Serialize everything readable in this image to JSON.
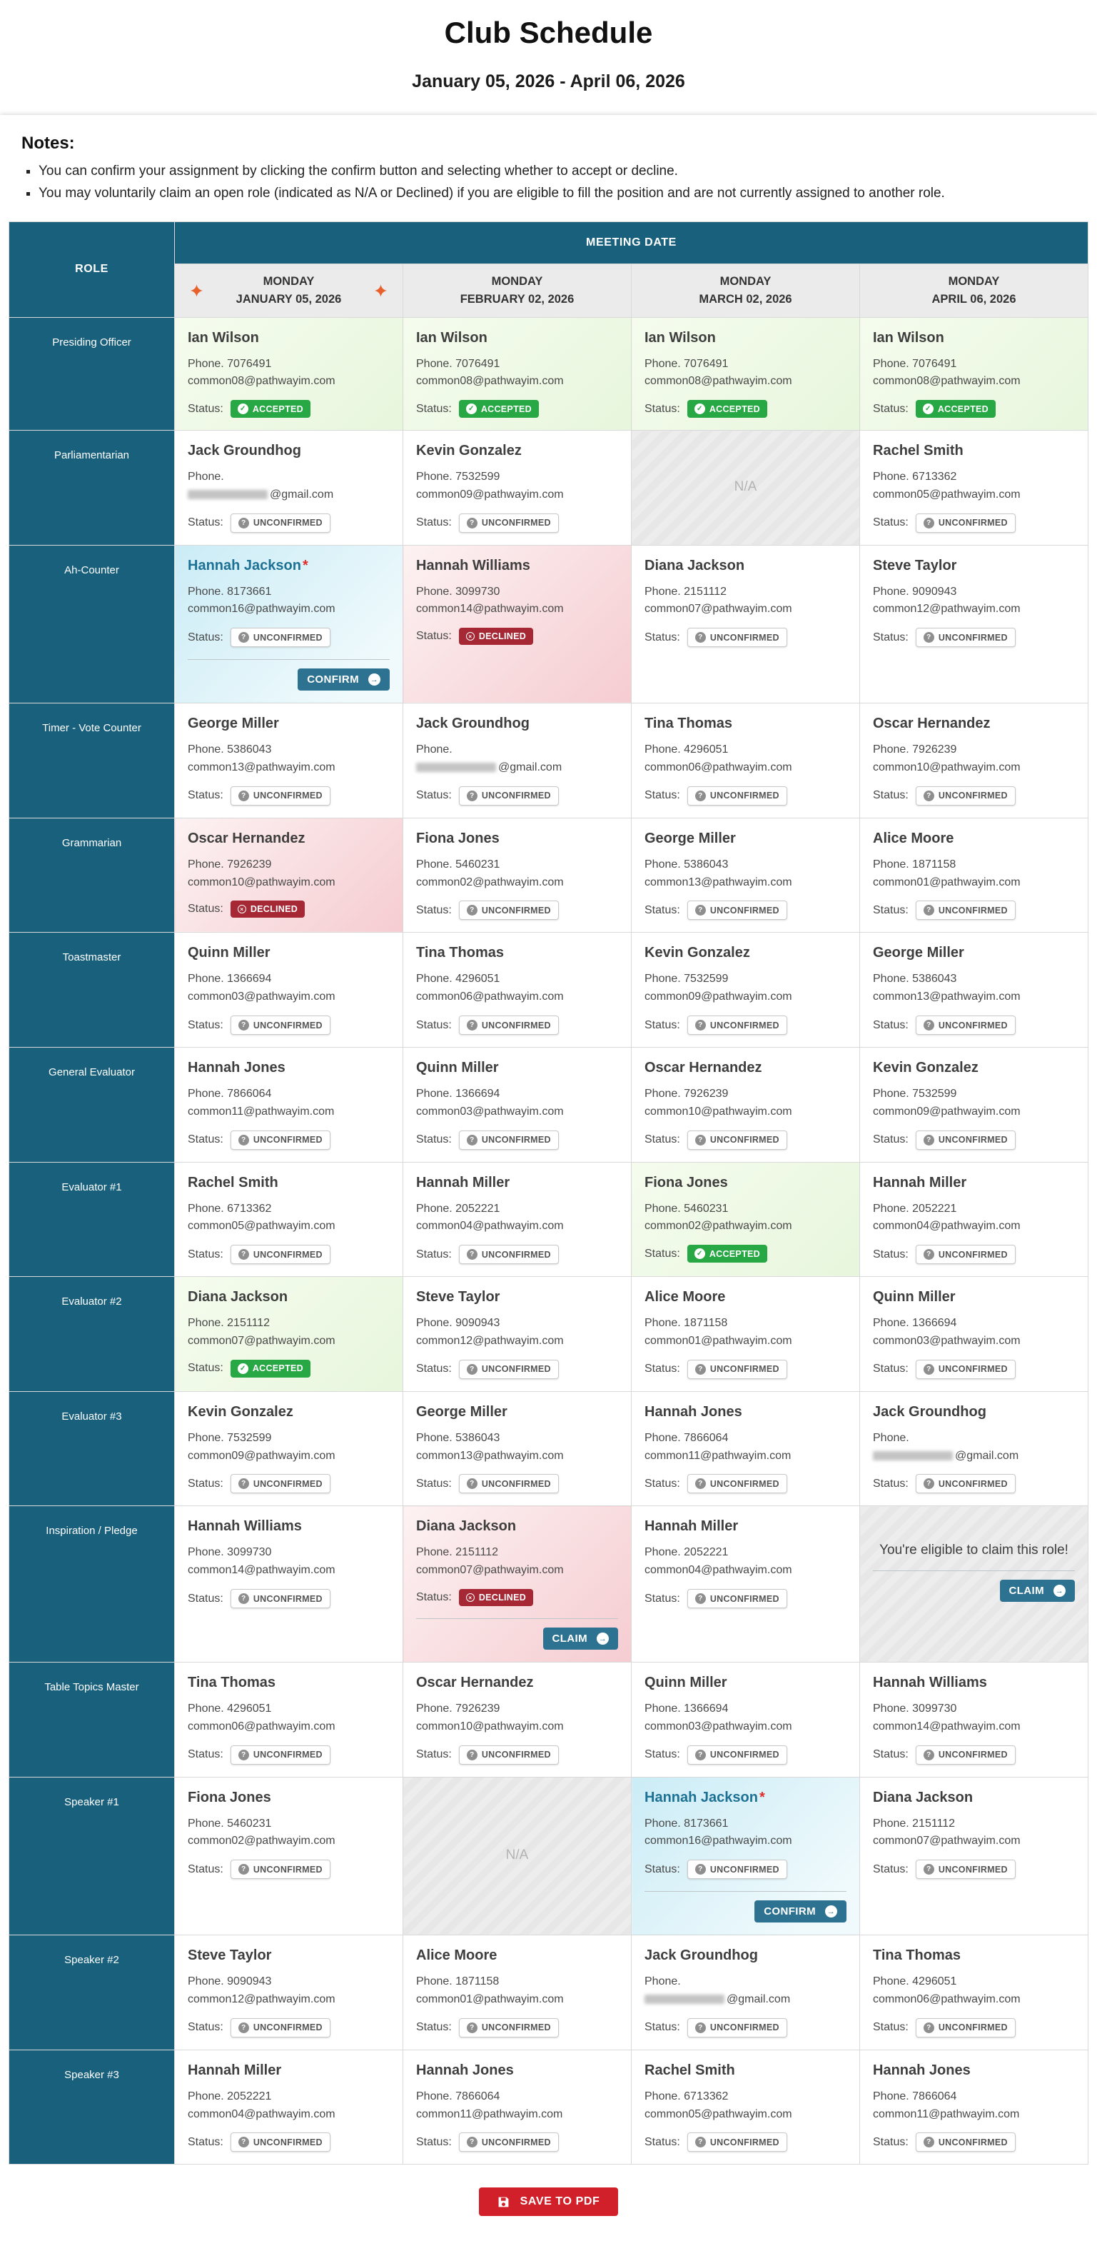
{
  "page": {
    "title": "Club Schedule",
    "date_range": "January 05, 2026 - April 06, 2026",
    "notes_heading": "Notes:",
    "notes": [
      "You can confirm your assignment by clicking the confirm button and selecting whether to accept or decline.",
      "You may voluntarily claim an open role (indicated as N/A or Declined) if you are eligible to fill the position and are not currently assigned to another role."
    ],
    "save_button_label": "SAVE TO PDF"
  },
  "colors": {
    "header_teal": "#19607d",
    "accepted_green": "#28a745",
    "declined_red": "#a52834",
    "action_teal": "#2e7292",
    "save_red": "#d1202a",
    "highlight_orange": "#e8612c",
    "accepted_cell": "#e8f6dd",
    "declined_cell": "#f5ccd1",
    "confirm_cell": "#cbecf6"
  },
  "table": {
    "role_header": "ROLE",
    "meeting_date_header": "MEETING DATE",
    "columns": [
      {
        "day": "MONDAY",
        "date": "JANUARY 05, 2026",
        "highlight": true
      },
      {
        "day": "MONDAY",
        "date": "FEBRUARY 02, 2026",
        "highlight": false
      },
      {
        "day": "MONDAY",
        "date": "MARCH 02, 2026",
        "highlight": false
      },
      {
        "day": "MONDAY",
        "date": "APRIL 06, 2026",
        "highlight": false
      }
    ],
    "labels": {
      "status": "Status:",
      "phone_prefix": "Phone.",
      "na": "N/A",
      "confirm": "CONFIRM",
      "claim": "CLAIM",
      "eligible": "You're eligible to claim this role!"
    },
    "status_labels": {
      "accepted": "ACCEPTED",
      "declined": "DECLINED",
      "unconfirmed": "UNCONFIRMED"
    },
    "rows": [
      {
        "role": "Presiding Officer",
        "cells": [
          {
            "name": "Ian Wilson",
            "phone": "7076491",
            "email": "common08@pathwayim.com",
            "status": "accepted",
            "bg": "green"
          },
          {
            "name": "Ian Wilson",
            "phone": "7076491",
            "email": "common08@pathwayim.com",
            "status": "accepted",
            "bg": "green"
          },
          {
            "name": "Ian Wilson",
            "phone": "7076491",
            "email": "common08@pathwayim.com",
            "status": "accepted",
            "bg": "green"
          },
          {
            "name": "Ian Wilson",
            "phone": "7076491",
            "email": "common08@pathwayim.com",
            "status": "accepted",
            "bg": "green"
          }
        ]
      },
      {
        "role": "Parliamentarian",
        "cells": [
          {
            "name": "Jack Groundhog",
            "phone": "",
            "email_redacted": true,
            "email_suffix": "@gmail.com",
            "status": "unconfirmed"
          },
          {
            "name": "Kevin Gonzalez",
            "phone": "7532599",
            "email": "common09@pathwayim.com",
            "status": "unconfirmed"
          },
          {
            "na": true
          },
          {
            "name": "Rachel Smith",
            "phone": "6713362",
            "email": "common05@pathwayim.com",
            "status": "unconfirmed"
          }
        ]
      },
      {
        "role": "Ah-Counter",
        "cells": [
          {
            "name": "Hannah Jackson",
            "asterisk": true,
            "phone": "8173661",
            "email": "common16@pathwayim.com",
            "status": "unconfirmed",
            "bg": "cyan",
            "action": "confirm"
          },
          {
            "name": "Hannah Williams",
            "phone": "3099730",
            "email": "common14@pathwayim.com",
            "status": "declined",
            "bg": "pink"
          },
          {
            "name": "Diana Jackson",
            "phone": "2151112",
            "email": "common07@pathwayim.com",
            "status": "unconfirmed"
          },
          {
            "name": "Steve Taylor",
            "phone": "9090943",
            "email": "common12@pathwayim.com",
            "status": "unconfirmed"
          }
        ]
      },
      {
        "role": "Timer - Vote Counter",
        "cells": [
          {
            "name": "George Miller",
            "phone": "5386043",
            "email": "common13@pathwayim.com",
            "status": "unconfirmed"
          },
          {
            "name": "Jack Groundhog",
            "phone": "",
            "email_redacted": true,
            "email_suffix": "@gmail.com",
            "status": "unconfirmed"
          },
          {
            "name": "Tina Thomas",
            "phone": "4296051",
            "email": "common06@pathwayim.com",
            "status": "unconfirmed"
          },
          {
            "name": "Oscar Hernandez",
            "phone": "7926239",
            "email": "common10@pathwayim.com",
            "status": "unconfirmed"
          }
        ]
      },
      {
        "role": "Grammarian",
        "cells": [
          {
            "name": "Oscar Hernandez",
            "phone": "7926239",
            "email": "common10@pathwayim.com",
            "status": "declined",
            "bg": "pink"
          },
          {
            "name": "Fiona Jones",
            "phone": "5460231",
            "email": "common02@pathwayim.com",
            "status": "unconfirmed"
          },
          {
            "name": "George Miller",
            "phone": "5386043",
            "email": "common13@pathwayim.com",
            "status": "unconfirmed"
          },
          {
            "name": "Alice Moore",
            "phone": "1871158",
            "email": "common01@pathwayim.com",
            "status": "unconfirmed"
          }
        ]
      },
      {
        "role": "Toastmaster",
        "cells": [
          {
            "name": "Quinn Miller",
            "phone": "1366694",
            "email": "common03@pathwayim.com",
            "status": "unconfirmed"
          },
          {
            "name": "Tina Thomas",
            "phone": "4296051",
            "email": "common06@pathwayim.com",
            "status": "unconfirmed"
          },
          {
            "name": "Kevin Gonzalez",
            "phone": "7532599",
            "email": "common09@pathwayim.com",
            "status": "unconfirmed"
          },
          {
            "name": "George Miller",
            "phone": "5386043",
            "email": "common13@pathwayim.com",
            "status": "unconfirmed"
          }
        ]
      },
      {
        "role": "General Evaluator",
        "cells": [
          {
            "name": "Hannah Jones",
            "phone": "7866064",
            "email": "common11@pathwayim.com",
            "status": "unconfirmed"
          },
          {
            "name": "Quinn Miller",
            "phone": "1366694",
            "email": "common03@pathwayim.com",
            "status": "unconfirmed"
          },
          {
            "name": "Oscar Hernandez",
            "phone": "7926239",
            "email": "common10@pathwayim.com",
            "status": "unconfirmed"
          },
          {
            "name": "Kevin Gonzalez",
            "phone": "7532599",
            "email": "common09@pathwayim.com",
            "status": "unconfirmed"
          }
        ]
      },
      {
        "role": "Evaluator #1",
        "cells": [
          {
            "name": "Rachel Smith",
            "phone": "6713362",
            "email": "common05@pathwayim.com",
            "status": "unconfirmed"
          },
          {
            "name": "Hannah Miller",
            "phone": "2052221",
            "email": "common04@pathwayim.com",
            "status": "unconfirmed"
          },
          {
            "name": "Fiona Jones",
            "phone": "5460231",
            "email": "common02@pathwayim.com",
            "status": "accepted",
            "bg": "green"
          },
          {
            "name": "Hannah Miller",
            "phone": "2052221",
            "email": "common04@pathwayim.com",
            "status": "unconfirmed"
          }
        ]
      },
      {
        "role": "Evaluator #2",
        "cells": [
          {
            "name": "Diana Jackson",
            "phone": "2151112",
            "email": "common07@pathwayim.com",
            "status": "accepted",
            "bg": "green"
          },
          {
            "name": "Steve Taylor",
            "phone": "9090943",
            "email": "common12@pathwayim.com",
            "status": "unconfirmed"
          },
          {
            "name": "Alice Moore",
            "phone": "1871158",
            "email": "common01@pathwayim.com",
            "status": "unconfirmed"
          },
          {
            "name": "Quinn Miller",
            "phone": "1366694",
            "email": "common03@pathwayim.com",
            "status": "unconfirmed"
          }
        ]
      },
      {
        "role": "Evaluator #3",
        "cells": [
          {
            "name": "Kevin Gonzalez",
            "phone": "7532599",
            "email": "common09@pathwayim.com",
            "status": "unconfirmed"
          },
          {
            "name": "George Miller",
            "phone": "5386043",
            "email": "common13@pathwayim.com",
            "status": "unconfirmed"
          },
          {
            "name": "Hannah Jones",
            "phone": "7866064",
            "email": "common11@pathwayim.com",
            "status": "unconfirmed"
          },
          {
            "name": "Jack Groundhog",
            "phone": "",
            "email_redacted": true,
            "email_suffix": "@gmail.com",
            "status": "unconfirmed"
          }
        ]
      },
      {
        "role": "Inspiration / Pledge",
        "cells": [
          {
            "name": "Hannah Williams",
            "phone": "3099730",
            "email": "common14@pathwayim.com",
            "status": "unconfirmed"
          },
          {
            "name": "Diana Jackson",
            "phone": "2151112",
            "email": "common07@pathwayim.com",
            "status": "declined",
            "bg": "pink",
            "action": "claim"
          },
          {
            "name": "Hannah Miller",
            "phone": "2052221",
            "email": "common04@pathwayim.com",
            "status": "unconfirmed"
          },
          {
            "claimable": true,
            "action": "claim"
          }
        ]
      },
      {
        "role": "Table Topics Master",
        "cells": [
          {
            "name": "Tina Thomas",
            "phone": "4296051",
            "email": "common06@pathwayim.com",
            "status": "unconfirmed"
          },
          {
            "name": "Oscar Hernandez",
            "phone": "7926239",
            "email": "common10@pathwayim.com",
            "status": "unconfirmed"
          },
          {
            "name": "Quinn Miller",
            "phone": "1366694",
            "email": "common03@pathwayim.com",
            "status": "unconfirmed"
          },
          {
            "name": "Hannah Williams",
            "phone": "3099730",
            "email": "common14@pathwayim.com",
            "status": "unconfirmed"
          }
        ]
      },
      {
        "role": "Speaker #1",
        "cells": [
          {
            "name": "Fiona Jones",
            "phone": "5460231",
            "email": "common02@pathwayim.com",
            "status": "unconfirmed"
          },
          {
            "na": true
          },
          {
            "name": "Hannah Jackson",
            "asterisk": true,
            "phone": "8173661",
            "email": "common16@pathwayim.com",
            "status": "unconfirmed",
            "bg": "cyan",
            "action": "confirm"
          },
          {
            "name": "Diana Jackson",
            "phone": "2151112",
            "email": "common07@pathwayim.com",
            "status": "unconfirmed"
          }
        ]
      },
      {
        "role": "Speaker #2",
        "cells": [
          {
            "name": "Steve Taylor",
            "phone": "9090943",
            "email": "common12@pathwayim.com",
            "status": "unconfirmed"
          },
          {
            "name": "Alice Moore",
            "phone": "1871158",
            "email": "common01@pathwayim.com",
            "status": "unconfirmed"
          },
          {
            "name": "Jack Groundhog",
            "phone": "",
            "email_redacted": true,
            "email_suffix": "@gmail.com",
            "status": "unconfirmed"
          },
          {
            "name": "Tina Thomas",
            "phone": "4296051",
            "email": "common06@pathwayim.com",
            "status": "unconfirmed"
          }
        ]
      },
      {
        "role": "Speaker #3",
        "cells": [
          {
            "name": "Hannah Miller",
            "phone": "2052221",
            "email": "common04@pathwayim.com",
            "status": "unconfirmed"
          },
          {
            "name": "Hannah Jones",
            "phone": "7866064",
            "email": "common11@pathwayim.com",
            "status": "unconfirmed"
          },
          {
            "name": "Rachel Smith",
            "phone": "6713362",
            "email": "common05@pathwayim.com",
            "status": "unconfirmed"
          },
          {
            "name": "Hannah Jones",
            "phone": "7866064",
            "email": "common11@pathwayim.com",
            "status": "unconfirmed"
          }
        ]
      }
    ]
  }
}
